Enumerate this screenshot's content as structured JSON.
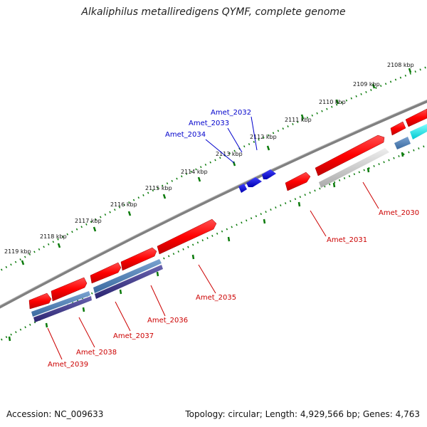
{
  "title": "Alkaliphilus metalliredigens QYMF, complete genome",
  "footer": {
    "accession": "Accession: NC_009633",
    "summary": "Topology: circular; Length: 4,929,566 bp; Genes: 4,763"
  },
  "colors": {
    "backbone": "#808080",
    "tick": "#0a7a0a",
    "forward_gene": "#ff0000",
    "reverse_gene": "#ff0000",
    "label_forward": "#0000cc",
    "label_reverse": "#cc0000"
  },
  "scale_labels": [
    "2108 kbp",
    "2109 kbp",
    "2110 kbp",
    "2111 kbp",
    "2112 kbp",
    "2113 kbp",
    "2114 kbp",
    "2115 kbp",
    "2116 kbp",
    "2117 kbp",
    "2118 kbp",
    "2119 kbp"
  ],
  "gene_labels": {
    "Amet_2032": "Amet_2032",
    "Amet_2033": "Amet_2033",
    "Amet_2034": "Amet_2034",
    "Amet_2030": "Amet_2030",
    "Amet_2031": "Amet_2031",
    "Amet_2035": "Amet_2035",
    "Amet_2036": "Amet_2036",
    "Amet_2037": "Amet_2037",
    "Amet_2038": "Amet_2038",
    "Amet_2039": "Amet_2039"
  }
}
